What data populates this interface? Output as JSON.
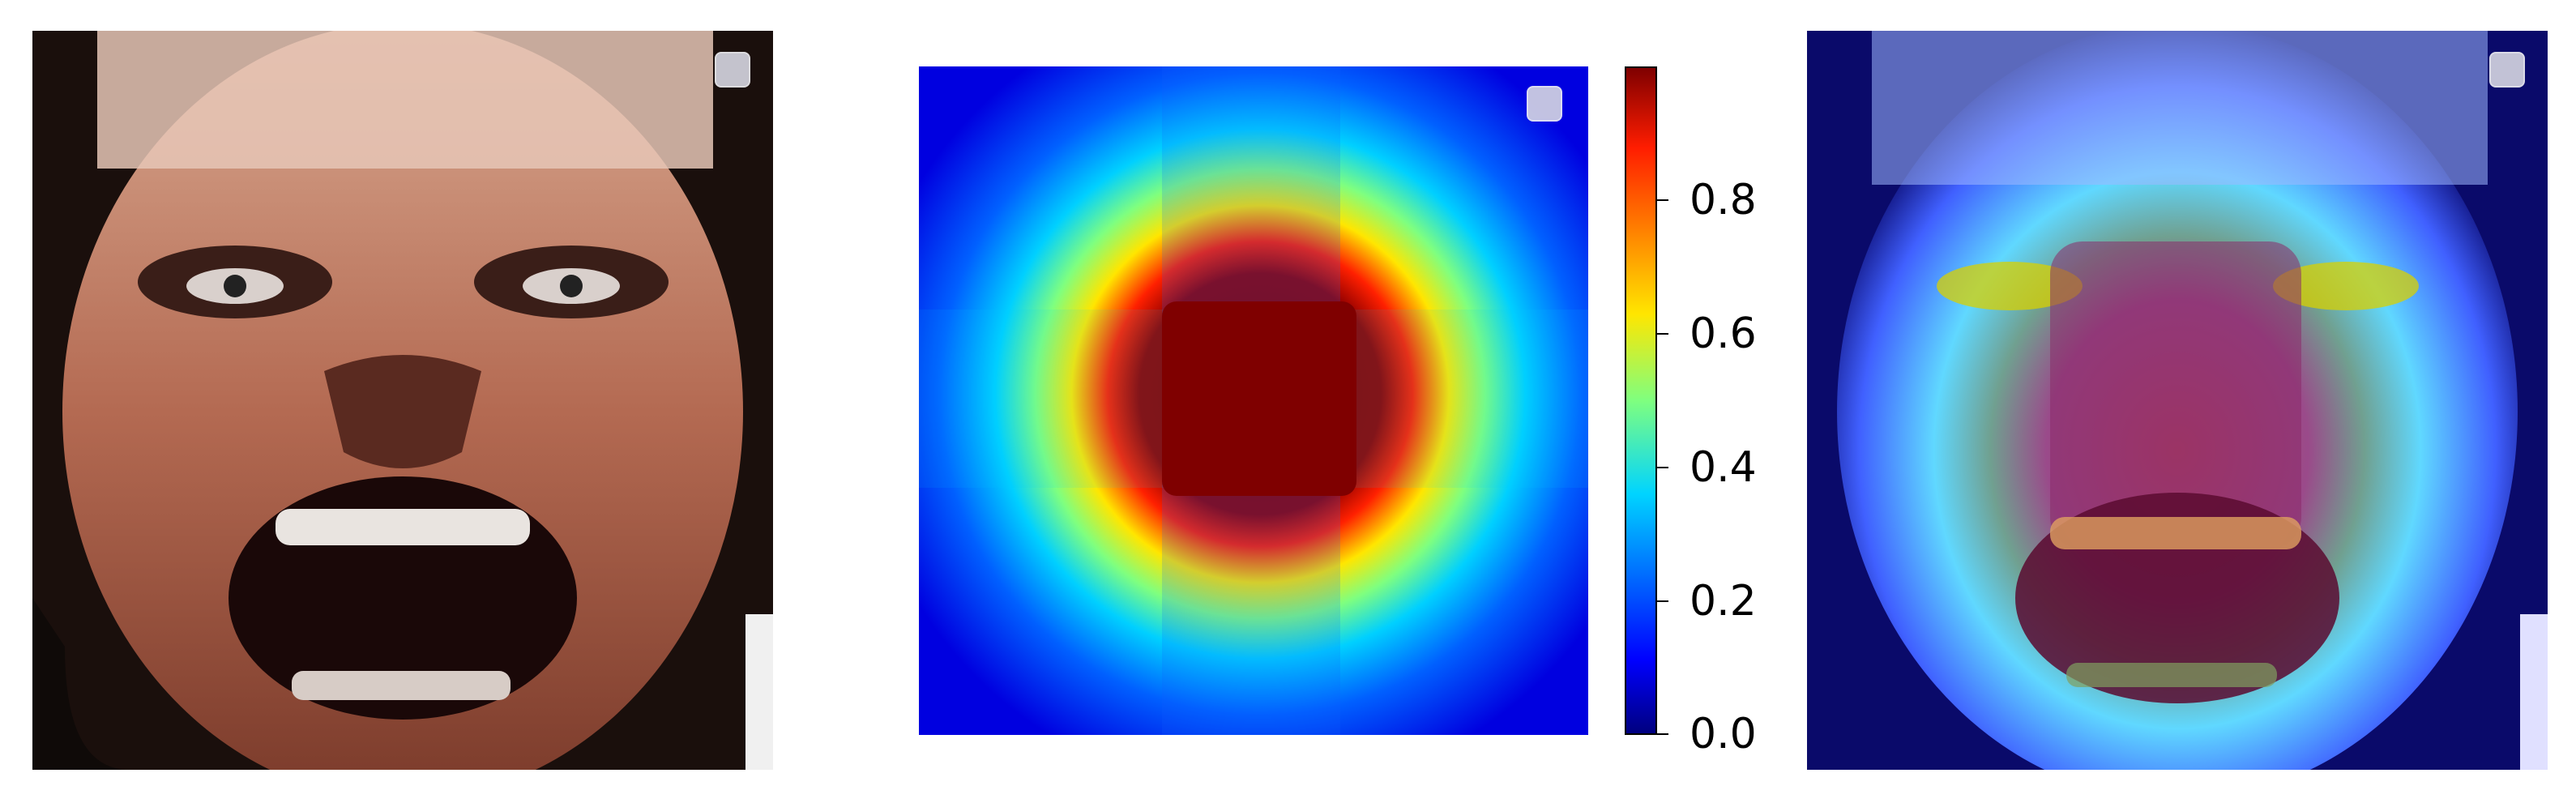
{
  "figure": {
    "panels": [
      {
        "name": "input-face"
      },
      {
        "name": "attention-heatmap"
      },
      {
        "name": "heatmap-overlay"
      }
    ],
    "colormap": "jet",
    "colorbar": {
      "ticks": [
        "0.0",
        "0.2",
        "0.4",
        "0.6",
        "0.8"
      ],
      "range": [
        0.0,
        1.0
      ]
    },
    "colors": {
      "background": "#ffffff",
      "legend_marker": "#d7d7e2"
    }
  }
}
